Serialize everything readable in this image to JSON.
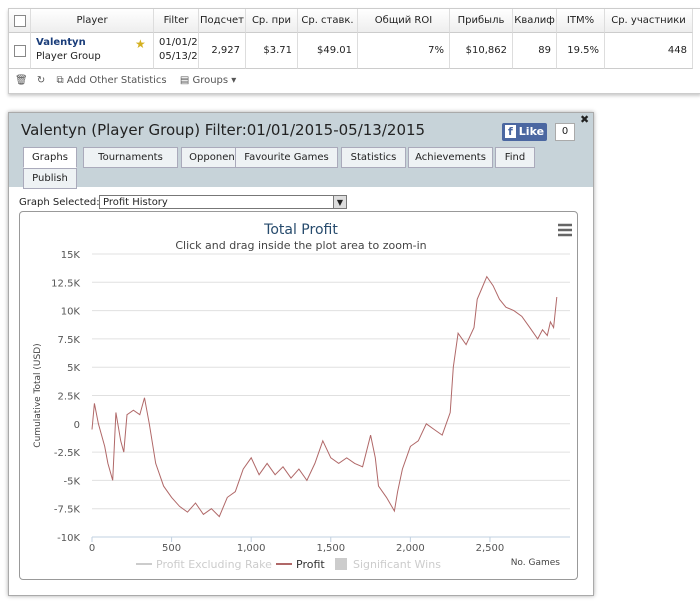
{
  "table": {
    "headers": [
      "Player",
      "Filter",
      "Подсчет",
      "Ср. при",
      "Ср. ставк.",
      "Общий ROI",
      "Прибыль",
      "Квалиф",
      "ITM%",
      "Ср. участники"
    ],
    "row": {
      "player": "Valentyn",
      "group": "Player Group",
      "filter": [
        "01/01/2",
        "05/13/2"
      ],
      "cells": [
        "2,927",
        "$3.71",
        "$49.01",
        "7%",
        "$10,862",
        "89",
        "19.5%",
        "448"
      ]
    }
  },
  "toolbar": {
    "add": "Add Other Statistics",
    "groups": "Groups"
  },
  "panel": {
    "title": "Valentyn (Player Group) Filter:01/01/2015-05/13/2015",
    "like": "Like",
    "like_count": "0",
    "tabs": [
      "Graphs",
      "Tournaments",
      "Opponents",
      "Favourite Games",
      "Statistics",
      "Achievements",
      "Find",
      "Publish"
    ],
    "graph_label": "Graph Selected:",
    "graph_selected": "Profit History"
  },
  "chart_data": {
    "type": "line",
    "title": "Total Profit",
    "subtitle": "Click and drag inside the plot area to zoom-in",
    "y_label": "Cumulative Total (USD)",
    "x_label": "No. Games",
    "xlim": [
      0,
      2940
    ],
    "xticks": [
      0,
      500,
      {
        "value": 1000,
        "label": "1,000"
      },
      {
        "value": 1500,
        "label": "1,500"
      },
      {
        "value": 2000,
        "label": "2,000"
      },
      {
        "value": 2500,
        "label": "2,500"
      }
    ],
    "ylim": [
      -10000,
      15000
    ],
    "yticks": [
      {
        "value": -10000,
        "label": "-10K"
      },
      {
        "value": -7500,
        "label": "-7.5K"
      },
      {
        "value": -5000,
        "label": "-5K"
      },
      {
        "value": -2500,
        "label": "-2.5K"
      },
      0,
      {
        "value": 2500,
        "label": "2.5K"
      },
      {
        "value": 5000,
        "label": "5K"
      },
      {
        "value": 7500,
        "label": "7.5K"
      },
      {
        "value": 10000,
        "label": "10K"
      },
      {
        "value": 12500,
        "label": "12.5K"
      },
      {
        "value": 15000,
        "label": "15K"
      }
    ],
    "grid": true,
    "series": [
      {
        "name": "Profit Excluding Rake",
        "color": "#cccccc",
        "hidden": true
      },
      {
        "name": "Profit",
        "color": "#b06868",
        "x": [
          0,
          15,
          40,
          80,
          100,
          130,
          150,
          180,
          200,
          220,
          260,
          300,
          330,
          360,
          400,
          450,
          500,
          550,
          600,
          650,
          700,
          750,
          800,
          850,
          900,
          950,
          1000,
          1050,
          1100,
          1150,
          1200,
          1250,
          1300,
          1350,
          1400,
          1450,
          1500,
          1550,
          1600,
          1650,
          1700,
          1750,
          1780,
          1800,
          1850,
          1900,
          1920,
          1950,
          2000,
          2050,
          2100,
          2150,
          2200,
          2250,
          2270,
          2300,
          2350,
          2400,
          2420,
          2450,
          2480,
          2520,
          2560,
          2600,
          2650,
          2700,
          2750,
          2800,
          2830,
          2860,
          2880,
          2900,
          2920
        ],
        "values": [
          -500,
          1800,
          0,
          -2000,
          -3500,
          -5000,
          1000,
          -1500,
          -2500,
          800,
          1200,
          800,
          2300,
          0,
          -3500,
          -5500,
          -6500,
          -7300,
          -7800,
          -7000,
          -8000,
          -7500,
          -8200,
          -6500,
          -6000,
          -4000,
          -3000,
          -4500,
          -3500,
          -4500,
          -3800,
          -4800,
          -4000,
          -5000,
          -3500,
          -1500,
          -3000,
          -3500,
          -3000,
          -3500,
          -3800,
          -1000,
          -3000,
          -5500,
          -6500,
          -7700,
          -6000,
          -4000,
          -2000,
          -1500,
          0,
          -500,
          -1000,
          1000,
          5000,
          8000,
          7000,
          8500,
          11000,
          12000,
          13000,
          12200,
          11000,
          10300,
          10000,
          9500,
          8500,
          7500,
          8300,
          7800,
          9000,
          8500,
          11200
        ]
      },
      {
        "name": "Significant Wins",
        "color": "#cccccc",
        "hidden": true
      }
    ]
  }
}
